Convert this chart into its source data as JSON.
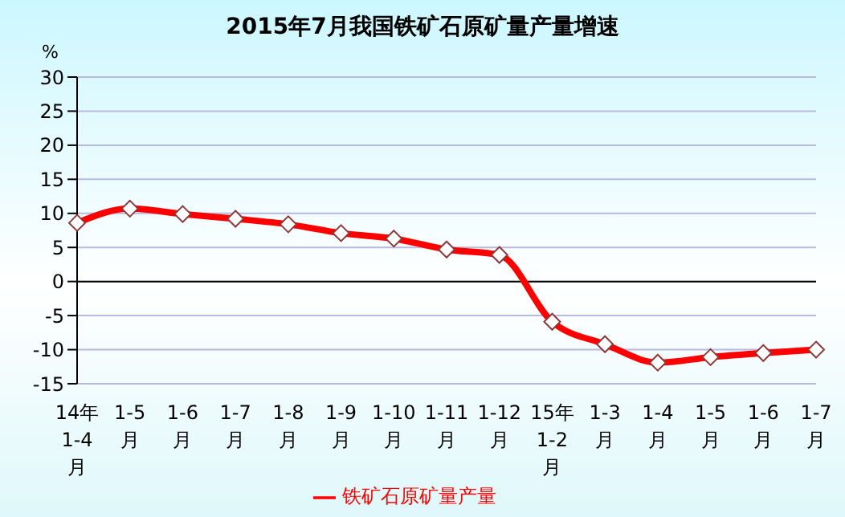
{
  "chart_data": {
    "type": "line",
    "title": "2015年7月我国铁矿石原矿量产量增速",
    "ylabel": "%",
    "categories": [
      "14年 1-4 月",
      "1-5 月",
      "1-6 月",
      "1-7 月",
      "1-8 月",
      "1-9 月",
      "1-10 月",
      "1-11 月",
      "1-12 月",
      "15年 1-2 月",
      "1-3 月",
      "1-4 月",
      "1-5 月",
      "1-6 月",
      "1-7 月"
    ],
    "series": [
      {
        "name": "铁矿石原矿量产量",
        "color": "#ff0000",
        "values": [
          8.6,
          10.7,
          9.9,
          9.2,
          8.4,
          7.1,
          6.3,
          4.7,
          3.9,
          -5.9,
          -9.2,
          -11.9,
          -11.1,
          -10.5,
          -10.0
        ]
      }
    ],
    "ylim": [
      -15,
      30
    ],
    "yticks": [
      -15,
      -10,
      -5,
      0,
      5,
      10,
      15,
      20,
      25,
      30
    ],
    "grid": "y",
    "legend": "bottom",
    "marker": "diamond",
    "line_style": "solid"
  }
}
